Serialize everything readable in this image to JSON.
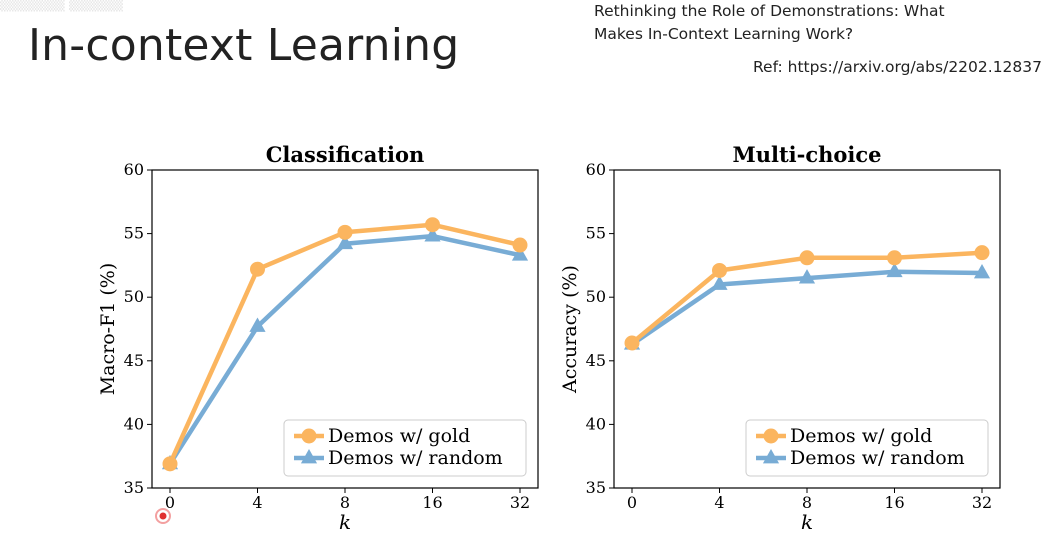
{
  "slide": {
    "title": "In-context Learning",
    "paper_title_line1": "Rethinking the Role of Demonstrations: What",
    "paper_title_line2": "Makes In-Context Learning Work?",
    "reference": "Ref: https://arxiv.org/abs/2202.12837"
  },
  "colors": {
    "gold": "#fbb55f",
    "random": "#78acd5",
    "cursor": "#e03030"
  },
  "chart_data": [
    {
      "type": "line",
      "title": "Classification",
      "xlabel": "k",
      "ylabel": "Macro-F1 (%)",
      "categories": [
        "0",
        "4",
        "8",
        "16",
        "32"
      ],
      "ylim": [
        35,
        60
      ],
      "yticks": [
        "35",
        "40",
        "45",
        "50",
        "55",
        "60"
      ],
      "legend_position": "lower-right",
      "series": [
        {
          "name": "Demos w/ gold",
          "marker": "circle",
          "values": [
            36.9,
            52.2,
            55.1,
            55.7,
            54.1
          ]
        },
        {
          "name": "Demos w/ random",
          "marker": "triangle",
          "values": [
            36.9,
            47.7,
            54.2,
            54.8,
            53.3
          ]
        }
      ]
    },
    {
      "type": "line",
      "title": "Multi-choice",
      "xlabel": "k",
      "ylabel": "Accuracy (%)",
      "categories": [
        "0",
        "4",
        "8",
        "16",
        "32"
      ],
      "ylim": [
        35,
        60
      ],
      "yticks": [
        "35",
        "40",
        "45",
        "50",
        "55",
        "60"
      ],
      "legend_position": "lower-right",
      "series": [
        {
          "name": "Demos w/ gold",
          "marker": "circle",
          "values": [
            46.4,
            52.1,
            53.1,
            53.1,
            53.5
          ]
        },
        {
          "name": "Demos w/ random",
          "marker": "triangle",
          "values": [
            46.3,
            51.0,
            51.5,
            52.0,
            51.9
          ]
        }
      ]
    }
  ]
}
